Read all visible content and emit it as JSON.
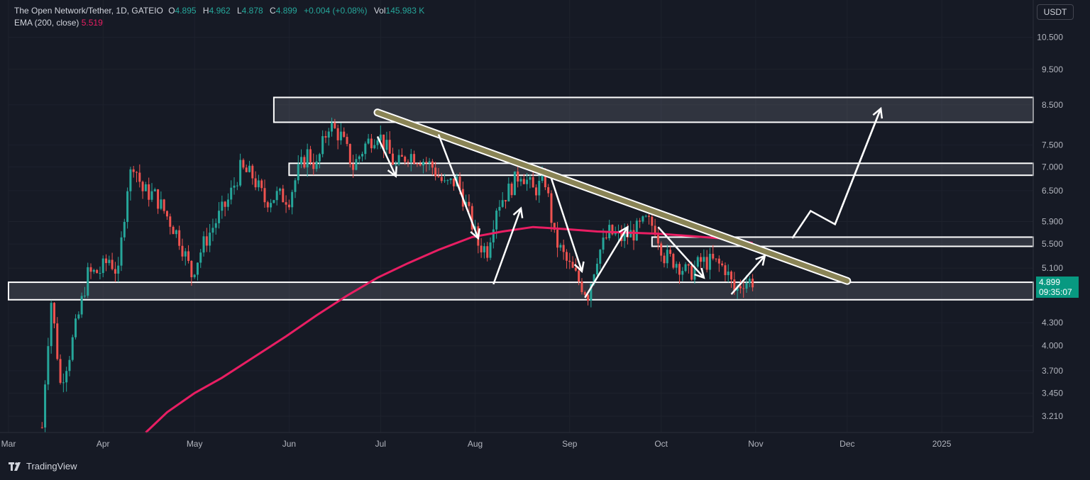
{
  "header": {
    "symbol": "The Open Network/Tether, 1D, GATEIO",
    "o_label": "O",
    "o_value": "4.895",
    "h_label": "H",
    "h_value": "4.962",
    "l_label": "L",
    "l_value": "4.878",
    "c_label": "C",
    "c_value": "4.899",
    "change": "+0.004 (+0.08%)",
    "vol_label": "Vol",
    "vol_value": "145.983 K",
    "ema_label": "EMA (200, close)",
    "ema_value": "5.519"
  },
  "currency_button": "USDT",
  "price_tag": {
    "price": "4.899",
    "countdown": "09:35:07"
  },
  "footer": {
    "brand": "TradingView"
  },
  "colors": {
    "background": "#161a25",
    "up": "#26a69a",
    "down": "#ef5350",
    "ema": "#e91e63",
    "trendline": "#8a8456",
    "zone": "#2a2e39",
    "annotation": "#ffffff"
  },
  "chart_data": {
    "type": "candlestick",
    "y_scale": "log",
    "ylim": [
      3.05,
      11.8
    ],
    "y_ticks": [
      "10.500",
      "9.500",
      "8.500",
      "7.500",
      "7.000",
      "6.500",
      "5.900",
      "5.500",
      "5.100",
      "4.300",
      "4.000",
      "3.700",
      "3.450",
      "3.210"
    ],
    "x_ticks": [
      {
        "label": "Mar",
        "date": "2024-03-01"
      },
      {
        "label": "Apr",
        "date": "2024-04-01"
      },
      {
        "label": "May",
        "date": "2024-05-01"
      },
      {
        "label": "Jun",
        "date": "2024-06-01"
      },
      {
        "label": "Jul",
        "date": "2024-07-01"
      },
      {
        "label": "Aug",
        "date": "2024-08-01"
      },
      {
        "label": "Sep",
        "date": "2024-09-01"
      },
      {
        "label": "Oct",
        "date": "2024-10-01"
      },
      {
        "label": "Nov",
        "date": "2024-11-01"
      },
      {
        "label": "Dec",
        "date": "2024-12-01"
      },
      {
        "label": "2025",
        "date": "2025-01-01"
      }
    ],
    "close_path": [
      [
        "2024-03-12",
        3.1
      ],
      [
        "2024-03-15",
        4.6
      ],
      [
        "2024-03-18",
        3.55
      ],
      [
        "2024-03-21",
        3.9
      ],
      [
        "2024-03-24",
        4.4
      ],
      [
        "2024-03-27",
        5.0
      ],
      [
        "2024-03-31",
        5.05
      ],
      [
        "2024-04-03",
        5.25
      ],
      [
        "2024-04-06",
        5.0
      ],
      [
        "2024-04-09",
        6.6
      ],
      [
        "2024-04-11",
        7.1
      ],
      [
        "2024-04-14",
        6.5
      ],
      [
        "2024-04-18",
        6.4
      ],
      [
        "2024-04-22",
        6.0
      ],
      [
        "2024-04-26",
        5.6
      ],
      [
        "2024-04-30",
        5.0
      ],
      [
        "2024-05-04",
        5.5
      ],
      [
        "2024-05-08",
        5.9
      ],
      [
        "2024-05-12",
        6.3
      ],
      [
        "2024-05-16",
        6.95
      ],
      [
        "2024-05-20",
        6.8
      ],
      [
        "2024-05-24",
        6.3
      ],
      [
        "2024-05-28",
        6.4
      ],
      [
        "2024-06-01",
        6.35
      ],
      [
        "2024-06-04",
        6.9
      ],
      [
        "2024-06-07",
        7.3
      ],
      [
        "2024-06-10",
        7.0
      ],
      [
        "2024-06-14",
        8.0
      ],
      [
        "2024-06-18",
        7.7
      ],
      [
        "2024-06-22",
        7.0
      ],
      [
        "2024-06-26",
        7.5
      ],
      [
        "2024-06-30",
        7.8
      ],
      [
        "2024-07-03",
        7.4
      ],
      [
        "2024-07-06",
        7.0
      ],
      [
        "2024-07-10",
        7.3
      ],
      [
        "2024-07-14",
        7.2
      ],
      [
        "2024-07-18",
        7.0
      ],
      [
        "2024-07-22",
        6.6
      ],
      [
        "2024-07-26",
        6.7
      ],
      [
        "2024-07-29",
        6.2
      ],
      [
        "2024-08-02",
        5.5
      ],
      [
        "2024-08-05",
        5.4
      ],
      [
        "2024-08-08",
        6.2
      ],
      [
        "2024-08-12",
        6.5
      ],
      [
        "2024-08-16",
        6.9
      ],
      [
        "2024-08-20",
        6.5
      ],
      [
        "2024-08-24",
        6.7
      ],
      [
        "2024-08-27",
        5.6
      ],
      [
        "2024-08-31",
        5.2
      ],
      [
        "2024-09-04",
        4.9
      ],
      [
        "2024-09-07",
        4.7
      ],
      [
        "2024-09-10",
        5.3
      ],
      [
        "2024-09-14",
        5.7
      ],
      [
        "2024-09-18",
        5.6
      ],
      [
        "2024-09-22",
        5.7
      ],
      [
        "2024-09-26",
        5.9
      ],
      [
        "2024-09-29",
        5.8
      ],
      [
        "2024-10-02",
        5.3
      ],
      [
        "2024-10-06",
        5.2
      ],
      [
        "2024-10-10",
        5.0
      ],
      [
        "2024-10-14",
        5.2
      ],
      [
        "2024-10-18",
        5.2
      ],
      [
        "2024-10-22",
        5.1
      ],
      [
        "2024-10-25",
        4.75
      ],
      [
        "2024-10-28",
        4.9
      ],
      [
        "2024-10-31",
        4.899
      ]
    ],
    "ema_200": [
      [
        "2024-04-15",
        3.05
      ],
      [
        "2024-04-22",
        3.25
      ],
      [
        "2024-05-01",
        3.45
      ],
      [
        "2024-05-10",
        3.62
      ],
      [
        "2024-05-20",
        3.85
      ],
      [
        "2024-05-31",
        4.12
      ],
      [
        "2024-06-10",
        4.4
      ],
      [
        "2024-06-20",
        4.68
      ],
      [
        "2024-06-30",
        4.95
      ],
      [
        "2024-07-10",
        5.18
      ],
      [
        "2024-07-20",
        5.4
      ],
      [
        "2024-07-31",
        5.62
      ],
      [
        "2024-08-10",
        5.72
      ],
      [
        "2024-08-20",
        5.8
      ],
      [
        "2024-08-31",
        5.76
      ],
      [
        "2024-09-10",
        5.72
      ],
      [
        "2024-09-20",
        5.7
      ],
      [
        "2024-09-30",
        5.68
      ],
      [
        "2024-10-10",
        5.64
      ],
      [
        "2024-10-20",
        5.6
      ],
      [
        "2024-10-31",
        5.519
      ]
    ],
    "zones": [
      {
        "from": "2024-05-27",
        "to": "2025-01-31",
        "low": 8.05,
        "high": 8.7
      },
      {
        "from": "2024-06-01",
        "to": "2025-01-31",
        "low": 6.82,
        "high": 7.08
      },
      {
        "from": "2024-09-28",
        "to": "2025-01-31",
        "low": 5.46,
        "high": 5.62
      },
      {
        "from": "2024-03-01",
        "to": "2025-01-31",
        "low": 4.62,
        "high": 4.88
      }
    ],
    "trendline": [
      [
        "2024-06-30",
        8.3
      ],
      [
        "2024-12-01",
        4.9
      ]
    ],
    "projection": [
      [
        "2024-11-13",
        5.6
      ],
      [
        "2024-11-19",
        6.1
      ],
      [
        "2024-11-27",
        5.85
      ],
      [
        "2024-12-12",
        8.4
      ]
    ],
    "arrows": [
      {
        "from": [
          "2024-06-30",
          7.7
        ],
        "to": [
          "2024-07-06",
          6.8
        ]
      },
      {
        "from": [
          "2024-07-20",
          7.75
        ],
        "to": [
          "2024-08-02",
          5.6
        ]
      },
      {
        "from": [
          "2024-08-07",
          4.85
        ],
        "to": [
          "2024-08-16",
          6.15
        ]
      },
      {
        "from": [
          "2024-08-26",
          6.75
        ],
        "to": [
          "2024-09-05",
          5.05
        ]
      },
      {
        "from": [
          "2024-09-06",
          4.65
        ],
        "to": [
          "2024-09-20",
          5.8
        ]
      },
      {
        "from": [
          "2024-09-30",
          5.8
        ],
        "to": [
          "2024-10-15",
          4.95
        ]
      },
      {
        "from": [
          "2024-10-24",
          4.7
        ],
        "to": [
          "2024-11-04",
          5.3
        ]
      }
    ]
  }
}
